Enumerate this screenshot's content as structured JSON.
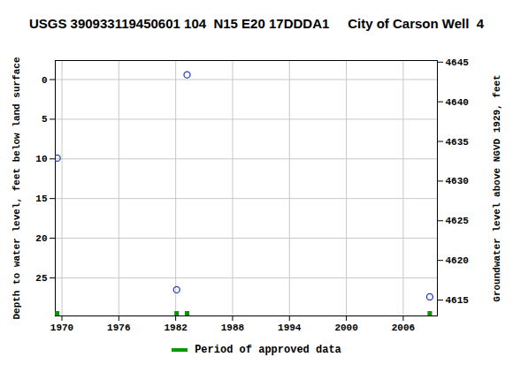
{
  "chart_data": {
    "type": "scatter",
    "title": "USGS 390933119450601 104  N15 E20 17DDDA1     City of Carson Well  4",
    "x": [
      1969.5,
      1982.1,
      1983.2,
      2008.8
    ],
    "series": [
      {
        "color": "#1f3fbf",
        "marker": "circle",
        "values": [
          9.9,
          26.5,
          -0.6,
          27.4
        ]
      }
    ],
    "approved_periods": {
      "name": "Period of approved data",
      "color": "#009900",
      "x": [
        1969.5,
        1982.1,
        1983.2,
        2008.8
      ]
    },
    "xlim": [
      1969.3,
      2009.6
    ],
    "xticks": [
      1970,
      1976,
      1982,
      1988,
      1994,
      2000,
      2006
    ],
    "ylabel": "Depth to water level, feet below land surface",
    "ylim": [
      -2.4,
      29.8
    ],
    "yticks": [
      0,
      5,
      10,
      15,
      20,
      25
    ],
    "y2label": "Groundwater level above NGVD 1929, feet",
    "y2lim": [
      4645.2,
      4613.0
    ],
    "y2ticks": [
      4615,
      4620,
      4625,
      4630,
      4635,
      4640,
      4645
    ],
    "grid": true,
    "legend": "bottom"
  }
}
